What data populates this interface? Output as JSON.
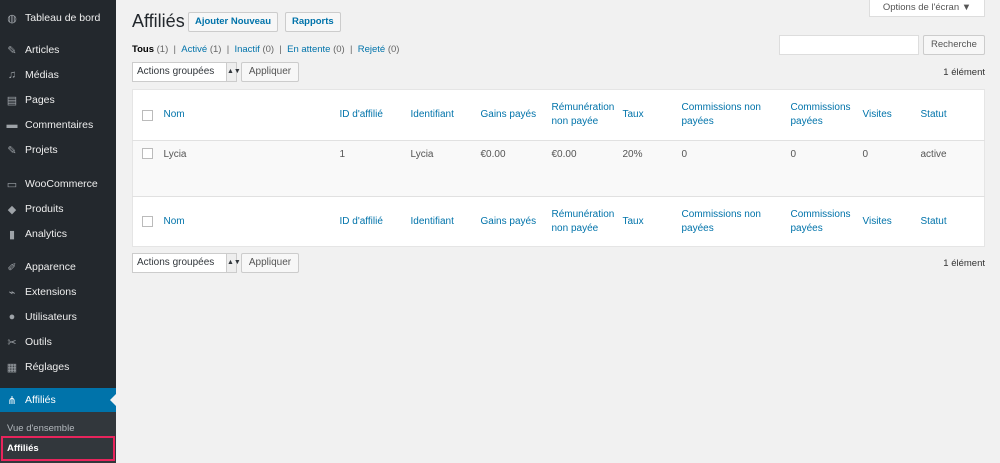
{
  "sidebar": {
    "items": [
      {
        "label": "Tableau de bord",
        "icon": "dashboard-icon"
      },
      {
        "label": "Articles",
        "icon": "pin-icon"
      },
      {
        "label": "Médias",
        "icon": "media-icon"
      },
      {
        "label": "Pages",
        "icon": "pages-icon"
      },
      {
        "label": "Commentaires",
        "icon": "comment-icon"
      },
      {
        "label": "Projets",
        "icon": "pin-icon"
      },
      {
        "label": "WooCommerce",
        "icon": "woocommerce-icon"
      },
      {
        "label": "Produits",
        "icon": "box-icon"
      },
      {
        "label": "Analytics",
        "icon": "bar-chart-icon"
      },
      {
        "label": "Apparence",
        "icon": "brush-icon"
      },
      {
        "label": "Extensions",
        "icon": "plugin-icon"
      },
      {
        "label": "Utilisateurs",
        "icon": "user-icon"
      },
      {
        "label": "Outils",
        "icon": "wrench-icon"
      },
      {
        "label": "Réglages",
        "icon": "settings-icon"
      },
      {
        "label": "Affiliés",
        "icon": "affiliate-icon"
      }
    ],
    "submenu": [
      "Vue d'ensemble",
      "Affiliés"
    ],
    "accent": "#0073aa",
    "highlight": "#e8245c"
  },
  "header": {
    "title": "Affiliés",
    "add_new": "Ajouter Nouveau",
    "reports": "Rapports",
    "screen_options": "Options de l'écran ▼"
  },
  "filters": [
    {
      "label": "Tous",
      "count": "(1)"
    },
    {
      "label": "Activé",
      "count": "(1)"
    },
    {
      "label": "Inactif",
      "count": "(0)"
    },
    {
      "label": "En attente",
      "count": "(0)"
    },
    {
      "label": "Rejeté",
      "count": "(0)"
    }
  ],
  "search": {
    "value": "",
    "button": "Recherche"
  },
  "bulk": {
    "label": "Actions groupées",
    "apply": "Appliquer",
    "count": "1 élément"
  },
  "table": {
    "columns": [
      "Nom",
      "ID d'affilié",
      "Identifiant",
      "Gains payés",
      "Rémunération non payée",
      "Taux",
      "Commissions non payées",
      "Commissions payées",
      "Visites",
      "Statut"
    ],
    "rows": [
      [
        "Lycia",
        "1",
        "Lycia",
        "€0.00",
        "€0.00",
        "20%",
        "0",
        "0",
        "0",
        "active"
      ]
    ]
  }
}
